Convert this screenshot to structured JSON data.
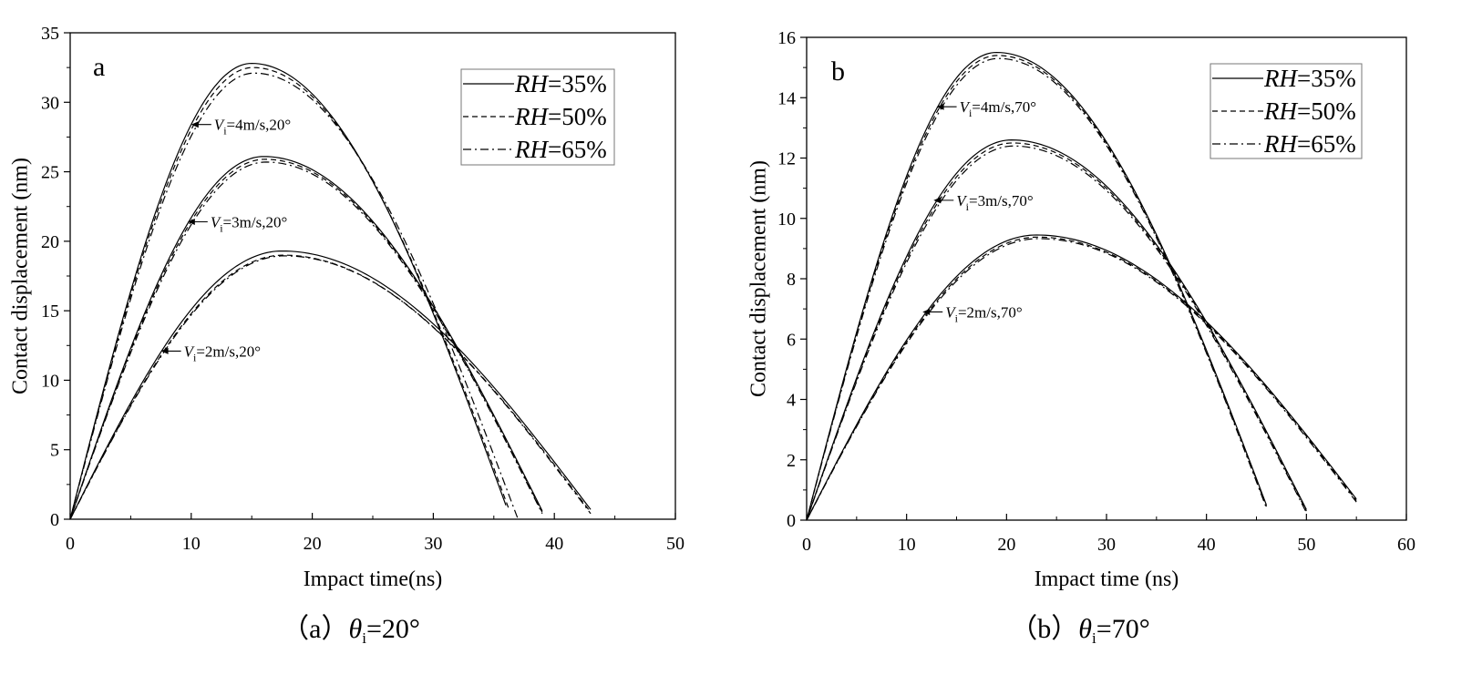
{
  "chart_data": [
    {
      "type": "line",
      "panel_label": "a",
      "caption": {
        "prefix": "（a）",
        "symbol": "θ",
        "sub": "i",
        "rest": "=20°"
      },
      "xlabel": "Impact time(ns)",
      "ylabel": "Contact displacement (nm)",
      "xlim": [
        0,
        50
      ],
      "ylim": [
        0,
        35
      ],
      "xticks": [
        0,
        10,
        20,
        30,
        40,
        50
      ],
      "yticks": [
        0,
        5,
        10,
        15,
        20,
        25,
        30,
        35
      ],
      "grid": false,
      "legend": {
        "position": "top-right",
        "entries": [
          {
            "italic": "RH",
            "rest": "=35%",
            "dash": "solid"
          },
          {
            "italic": "RH",
            "rest": "=50%",
            "dash": "dashed"
          },
          {
            "italic": "RH",
            "rest": "=65%",
            "dash": "dashdot"
          }
        ]
      },
      "annotations": [
        {
          "v": "V",
          "sub": "i",
          "rest": "=4m/s,20°",
          "point": [
            10,
            28.4
          ]
        },
        {
          "v": "V",
          "sub": "i",
          "rest": "=3m/s,20°",
          "point": [
            9.7,
            21.4
          ]
        },
        {
          "v": "V",
          "sub": "i",
          "rest": "=2m/s,20°",
          "point": [
            7.5,
            12.1
          ]
        }
      ],
      "groups": [
        {
          "label": "Vi=4m/s",
          "curves": [
            {
              "rh": "35%",
              "dash": "solid",
              "peak_x": 15.0,
              "peak_y": 32.8,
              "end_x": 36.0,
              "end_y": 1.0
            },
            {
              "rh": "50%",
              "dash": "dashed",
              "peak_x": 15.1,
              "peak_y": 32.5,
              "end_x": 36.3,
              "end_y": 0.6
            },
            {
              "rh": "65%",
              "dash": "dashdot",
              "peak_x": 15.2,
              "peak_y": 32.1,
              "end_x": 37.0,
              "end_y": 0.0
            }
          ]
        },
        {
          "label": "Vi=3m/s",
          "curves": [
            {
              "rh": "35%",
              "dash": "solid",
              "peak_x": 16.0,
              "peak_y": 26.1,
              "end_x": 39.0,
              "end_y": 0.6
            },
            {
              "rh": "50%",
              "dash": "dashed",
              "peak_x": 16.1,
              "peak_y": 25.9,
              "end_x": 39.0,
              "end_y": 0.5
            },
            {
              "rh": "65%",
              "dash": "dashdot",
              "peak_x": 16.2,
              "peak_y": 25.7,
              "end_x": 39.0,
              "end_y": 0.4
            }
          ]
        },
        {
          "label": "Vi=2m/s",
          "curves": [
            {
              "rh": "35%",
              "dash": "solid",
              "peak_x": 17.5,
              "peak_y": 19.3,
              "end_x": 43.0,
              "end_y": 0.7
            },
            {
              "rh": "50%",
              "dash": "dashed",
              "peak_x": 17.6,
              "peak_y": 19.0,
              "end_x": 43.0,
              "end_y": 0.5
            },
            {
              "rh": "65%",
              "dash": "dashdot",
              "peak_x": 17.7,
              "peak_y": 18.95,
              "end_x": 43.0,
              "end_y": 0.4
            }
          ]
        }
      ]
    },
    {
      "type": "line",
      "panel_label": "b",
      "caption": {
        "prefix": "（b）",
        "symbol": "θ",
        "sub": "i",
        "rest": "=70°"
      },
      "xlabel": "Impact time (ns)",
      "ylabel": "Contact displacement (nm)",
      "xlim": [
        0,
        60
      ],
      "ylim": [
        0,
        16
      ],
      "xticks": [
        0,
        10,
        20,
        30,
        40,
        50,
        60
      ],
      "yticks": [
        0,
        2,
        4,
        6,
        8,
        10,
        12,
        14,
        16
      ],
      "grid": false,
      "legend": {
        "position": "top-right",
        "entries": [
          {
            "italic": "RH",
            "rest": "=35%",
            "dash": "solid"
          },
          {
            "italic": "RH",
            "rest": "=50%",
            "dash": "dashed"
          },
          {
            "italic": "RH",
            "rest": "=65%",
            "dash": "dashdot"
          }
        ]
      },
      "annotations": [
        {
          "v": "V",
          "sub": "i",
          "rest": "=4m/s,70°",
          "point": [
            13.0,
            13.7
          ]
        },
        {
          "v": "V",
          "sub": "i",
          "rest": "=3m/s,70°",
          "point": [
            12.7,
            10.6
          ]
        },
        {
          "v": "V",
          "sub": "i",
          "rest": "=2m/s,70°",
          "point": [
            11.6,
            6.9
          ]
        }
      ],
      "groups": [
        {
          "label": "Vi=4m/s",
          "curves": [
            {
              "rh": "35%",
              "dash": "solid",
              "peak_x": 19.0,
              "peak_y": 15.5,
              "end_x": 46.0,
              "end_y": 0.5
            },
            {
              "rh": "50%",
              "dash": "dashed",
              "peak_x": 19.1,
              "peak_y": 15.4,
              "end_x": 46.0,
              "end_y": 0.45
            },
            {
              "rh": "65%",
              "dash": "dashdot",
              "peak_x": 19.2,
              "peak_y": 15.3,
              "end_x": 46.0,
              "end_y": 0.4
            }
          ]
        },
        {
          "label": "Vi=3m/s",
          "curves": [
            {
              "rh": "35%",
              "dash": "solid",
              "peak_x": 20.5,
              "peak_y": 12.6,
              "end_x": 50.0,
              "end_y": 0.35
            },
            {
              "rh": "50%",
              "dash": "dashed",
              "peak_x": 20.6,
              "peak_y": 12.5,
              "end_x": 50.0,
              "end_y": 0.3
            },
            {
              "rh": "65%",
              "dash": "dashdot",
              "peak_x": 20.7,
              "peak_y": 12.4,
              "end_x": 50.0,
              "end_y": 0.25
            }
          ]
        },
        {
          "label": "Vi=2m/s",
          "curves": [
            {
              "rh": "35%",
              "dash": "solid",
              "peak_x": 23.0,
              "peak_y": 9.45,
              "end_x": 55.0,
              "end_y": 0.7
            },
            {
              "rh": "50%",
              "dash": "dashed",
              "peak_x": 23.1,
              "peak_y": 9.38,
              "end_x": 55.0,
              "end_y": 0.65
            },
            {
              "rh": "65%",
              "dash": "dashdot",
              "peak_x": 23.2,
              "peak_y": 9.33,
              "end_x": 55.0,
              "end_y": 0.6
            }
          ]
        }
      ]
    }
  ]
}
